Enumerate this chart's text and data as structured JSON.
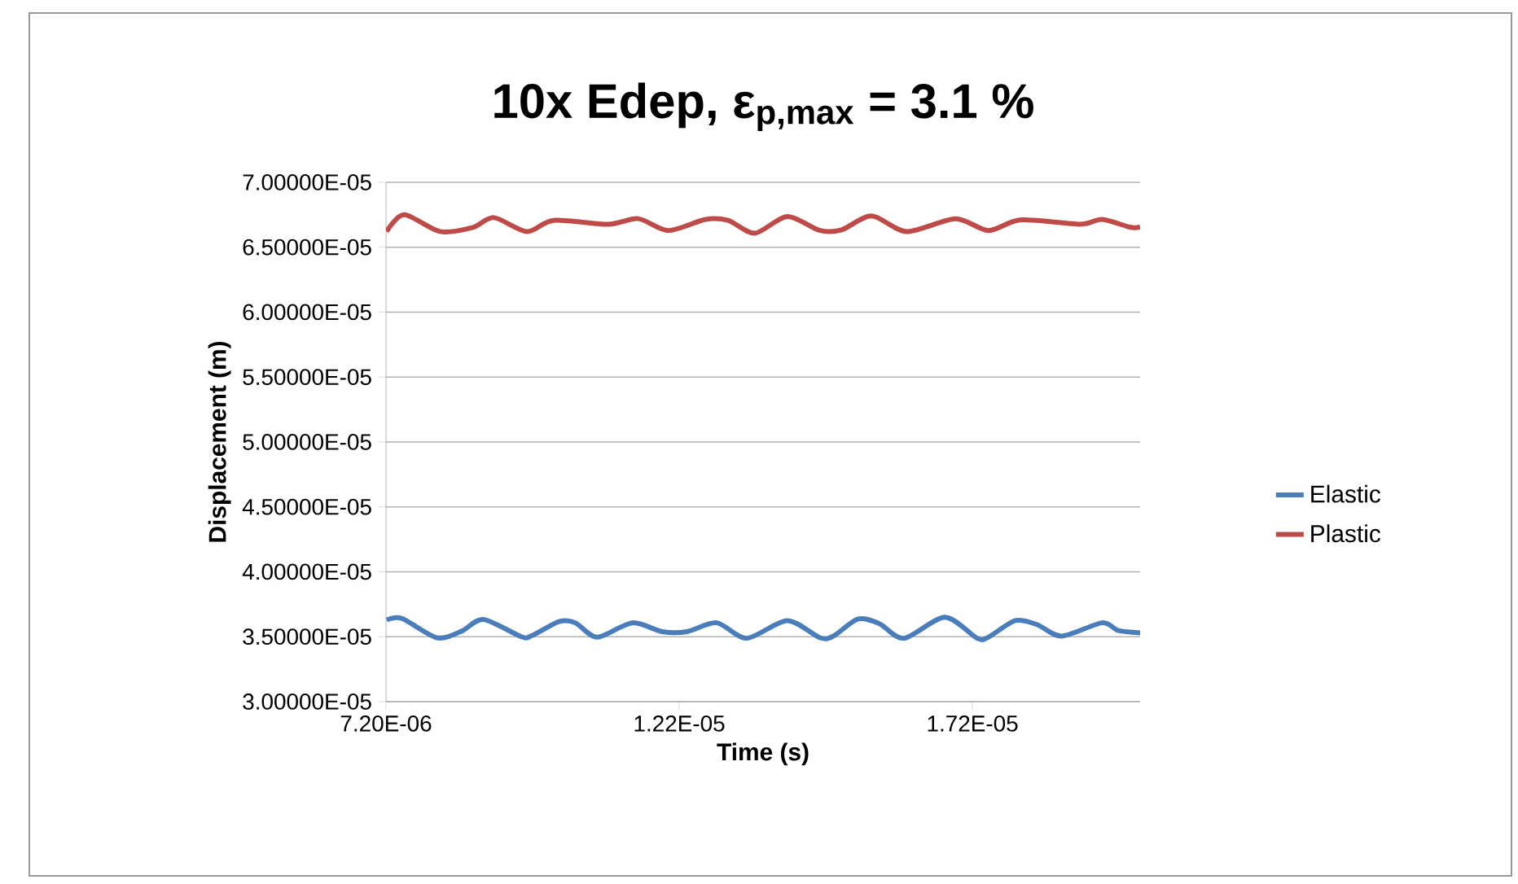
{
  "chart_data": {
    "type": "line",
    "title": "10x Edep, ε$_{p,max}$ = 3.1 %",
    "xlabel": "Time (s)",
    "ylabel": "Displacement (m)",
    "xlim": [
      7.2e-06,
      2.006e-05
    ],
    "xticks": [
      {
        "value": 7.2e-06,
        "label": "7.20E-06"
      },
      {
        "value": 1.22e-05,
        "label": "1.22E-05"
      },
      {
        "value": 1.72e-05,
        "label": "1.72E-05"
      }
    ],
    "ylim": [
      3e-05,
      7e-05
    ],
    "yticks": [
      {
        "value": 3e-05,
        "label": "3.00000E-05"
      },
      {
        "value": 3.5e-05,
        "label": "3.50000E-05"
      },
      {
        "value": 4e-05,
        "label": "4.00000E-05"
      },
      {
        "value": 4.5e-05,
        "label": "4.50000E-05"
      },
      {
        "value": 5e-05,
        "label": "5.00000E-05"
      },
      {
        "value": 5.5e-05,
        "label": "5.50000E-05"
      },
      {
        "value": 6e-05,
        "label": "6.00000E-05"
      },
      {
        "value": 6.5e-05,
        "label": "6.50000E-05"
      },
      {
        "value": 7e-05,
        "label": "7.00000E-05"
      }
    ],
    "grid": "y",
    "legend": "right",
    "marker": "none",
    "line_style": "solid",
    "series": [
      {
        "name": "Elastic",
        "color": "#4a7ebb",
        "x": [
          7.21e-06,
          7.47e-06,
          8.07e-06,
          8.49e-06,
          8.86e-06,
          9.51e-06,
          9.69e-06,
          1.015e-05,
          1.043e-05,
          1.08e-05,
          1.14e-05,
          1.191e-05,
          1.233e-05,
          1.284e-05,
          1.335e-05,
          1.404e-05,
          1.46e-05,
          1.483e-05,
          1.525e-05,
          1.562e-05,
          1.603e-05,
          1.673e-05,
          1.728e-05,
          1.747e-05,
          1.793e-05,
          1.83e-05,
          1.872e-05,
          1.941e-05,
          1.969e-05,
          2.006e-05
        ],
        "values": [
          3.629e-05,
          3.641e-05,
          3.492e-05,
          3.543e-05,
          3.633e-05,
          3.5e-05,
          3.509e-05,
          3.616e-05,
          3.607e-05,
          3.496e-05,
          3.607e-05,
          3.539e-05,
          3.539e-05,
          3.607e-05,
          3.488e-05,
          3.624e-05,
          3.492e-05,
          3.505e-05,
          3.637e-05,
          3.599e-05,
          3.488e-05,
          3.65e-05,
          3.488e-05,
          3.496e-05,
          3.624e-05,
          3.594e-05,
          3.505e-05,
          3.607e-05,
          3.547e-05,
          3.53e-05
        ]
      },
      {
        "name": "Plastic",
        "color": "#be4b48",
        "x": [
          7.21e-06,
          7.51e-06,
          8.12e-06,
          8.67e-06,
          9.04e-06,
          9.6e-06,
          1.006e-05,
          1.099e-05,
          1.15e-05,
          1.201e-05,
          1.265e-05,
          1.303e-05,
          1.349e-05,
          1.404e-05,
          1.46e-05,
          1.497e-05,
          1.548e-05,
          1.608e-05,
          1.691e-05,
          1.747e-05,
          1.803e-05,
          1.904e-05,
          1.941e-05,
          1.988e-05,
          2.006e-05
        ],
        "values": [
          6.621e-05,
          6.75e-05,
          6.621e-05,
          6.651e-05,
          6.728e-05,
          6.621e-05,
          6.707e-05,
          6.677e-05,
          6.72e-05,
          6.629e-05,
          6.715e-05,
          6.707e-05,
          6.608e-05,
          6.737e-05,
          6.629e-05,
          6.634e-05,
          6.741e-05,
          6.621e-05,
          6.72e-05,
          6.629e-05,
          6.711e-05,
          6.677e-05,
          6.715e-05,
          6.655e-05,
          6.655e-05
        ]
      }
    ]
  }
}
